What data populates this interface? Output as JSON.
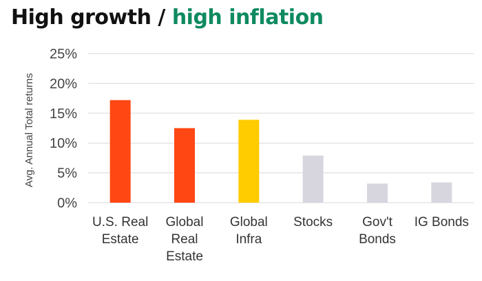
{
  "title": {
    "part1": "High growth / ",
    "part2": "high inflation"
  },
  "colors": {
    "title_dark": "#111111",
    "title_green": "#0f8a5f",
    "gridline": "#d9d9d9",
    "axis_text": "#444444",
    "label_text": "#333333"
  },
  "chart_data": {
    "type": "bar",
    "title": "High growth / high inflation",
    "xlabel": "",
    "ylabel": "Avg. Annual Total returns",
    "ylim": [
      0,
      25
    ],
    "yticks": [
      0,
      5,
      10,
      15,
      20,
      25
    ],
    "ytick_labels": [
      "0%",
      "5%",
      "10%",
      "15%",
      "20%",
      "25%"
    ],
    "grid": true,
    "categories": [
      [
        "U.S. Real",
        "Estate"
      ],
      [
        "Global",
        "Real",
        "Estate"
      ],
      [
        "Global",
        "Infra"
      ],
      [
        "Stocks"
      ],
      [
        "Gov't",
        "Bonds"
      ],
      [
        "IG Bonds"
      ]
    ],
    "values": [
      17.2,
      12.5,
      13.9,
      7.9,
      3.2,
      3.4
    ],
    "colors": [
      "#ff4713",
      "#ff4713",
      "#ffcc00",
      "#d7d6de",
      "#d7d6de",
      "#d7d6de"
    ]
  }
}
